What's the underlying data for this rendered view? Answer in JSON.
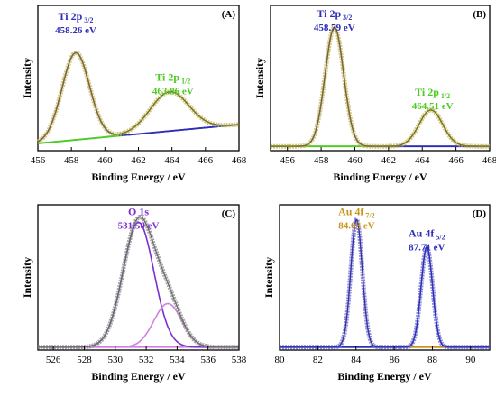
{
  "chart_data": [
    {
      "type": "line",
      "panel_label": "(A)",
      "xlabel": "Binding Energy / eV",
      "ylabel": "Intensity",
      "xlim": [
        456,
        468
      ],
      "ylim": [
        0,
        1.0
      ],
      "xticks": [
        456,
        458,
        460,
        462,
        464,
        466,
        468
      ],
      "xtick_labels": [
        "456",
        "458",
        "460",
        "462",
        "464",
        "466",
        "468"
      ],
      "peaks": [
        {
          "name": "Ti 2p",
          "sub": "3/2",
          "value": "458.26 eV",
          "color": "#2e2eb8",
          "center": 458.26,
          "amp": 0.6,
          "sigma": 0.82
        },
        {
          "name": "Ti 2p",
          "sub": "1/2",
          "value": "463.86 eV",
          "color": "#4ccc22",
          "center": 463.86,
          "amp": 0.27,
          "sigma": 1.15
        }
      ],
      "background": {
        "type": "linear",
        "y_start": 0.05,
        "y_end": 0.18,
        "colors": [
          "#3fcc22",
          "#2e2eb8"
        ]
      },
      "fit_color": "#7a6a2a",
      "points_color": "#c8b45a"
    },
    {
      "type": "line",
      "panel_label": "(B)",
      "xlabel": "Binding Energy / eV",
      "ylabel": "Intensity",
      "xlim": [
        455,
        468
      ],
      "ylim": [
        0,
        1.0
      ],
      "xticks": [
        456,
        458,
        460,
        462,
        464,
        466,
        468
      ],
      "xtick_labels": [
        "456",
        "458",
        "460",
        "462",
        "464",
        "466",
        "468"
      ],
      "peaks": [
        {
          "name": "Ti 2p",
          "sub": "3/2",
          "value": "458.79 eV",
          "color": "#2e2eb8",
          "center": 458.79,
          "amp": 0.82,
          "sigma": 0.55
        },
        {
          "name": "Ti 2p",
          "sub": "1/2",
          "value": "464.51 eV",
          "color": "#4ccc22",
          "center": 464.51,
          "amp": 0.25,
          "sigma": 0.7
        }
      ],
      "background": {
        "type": "flat",
        "y_start": 0.03,
        "y_end": 0.03,
        "colors": [
          "#4ccc22",
          "#2e2eb8"
        ]
      },
      "fit_color": "#7a6a2a",
      "points_color": "#c8b45a"
    },
    {
      "type": "line",
      "panel_label": "(C)",
      "xlabel": "Binding Energy / eV",
      "ylabel": "Intensity",
      "xlim": [
        525,
        538
      ],
      "ylim": [
        0,
        1.0
      ],
      "xticks": [
        526,
        528,
        530,
        532,
        534,
        536,
        538
      ],
      "xtick_labels": [
        "526",
        "528",
        "530",
        "532",
        "534",
        "536",
        "538"
      ],
      "peaks": [
        {
          "name": "O 1s",
          "sub": "",
          "value": "531.50 eV",
          "color": "#7b2fd0",
          "center": 531.5,
          "amp": 0.86,
          "sigma": 1.0
        },
        {
          "name": "",
          "sub": "",
          "value": "",
          "color": "#d080e0",
          "center": 533.4,
          "amp": 0.3,
          "sigma": 0.9
        }
      ],
      "background": {
        "type": "flat",
        "y_start": 0.02,
        "y_end": 0.02,
        "colors": [
          "#d080e0",
          "#d080e0"
        ]
      },
      "fit_color": "#6a6a6a",
      "points_color": "#8a8a8a"
    },
    {
      "type": "line",
      "panel_label": "(D)",
      "xlabel": "Binding Energy / eV",
      "ylabel": "Intensity",
      "xlim": [
        80,
        91
      ],
      "ylim": [
        0,
        1.0
      ],
      "xticks": [
        80,
        82,
        84,
        86,
        88,
        90
      ],
      "xtick_labels": [
        "80",
        "82",
        "84",
        "86",
        "88",
        "90"
      ],
      "peaks": [
        {
          "name": "Au 4f",
          "sub": "7/2",
          "value": "84.03 eV",
          "color": "#c9951e",
          "center": 84.03,
          "amp": 0.88,
          "sigma": 0.3
        },
        {
          "name": "Au 4f",
          "sub": "5/2",
          "value": "87.71 eV",
          "color": "#2e2eb8",
          "center": 87.71,
          "amp": 0.69,
          "sigma": 0.3
        }
      ],
      "background": {
        "type": "flat",
        "y_start": 0.02,
        "y_end": 0.02,
        "colors": [
          "#2e2eb8",
          "#c9951e"
        ]
      },
      "fit_color": "#2e2eb8",
      "points_color": "#6a6ad0"
    }
  ]
}
